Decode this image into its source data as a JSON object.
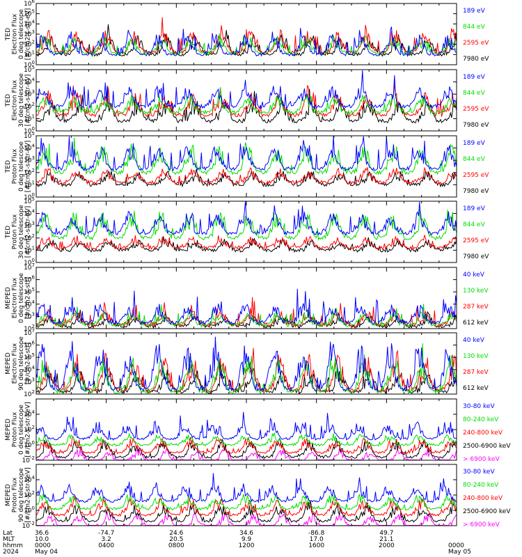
{
  "colors": {
    "black": "#000000",
    "red": "#ff0000",
    "green": "#00dd00",
    "blue": "#0000ff",
    "magenta": "#ff00ff"
  },
  "chart_data": [
    {
      "type": "line",
      "ylabel": [
        "TED",
        "Electron Flux",
        "0 deg telescope",
        "[#/cm2-s-str-eV]"
      ],
      "yscale": "log",
      "ylim_exp": [
        0,
        6
      ],
      "tick_labels": [
        "10",
        "10",
        "10",
        "10",
        "10",
        "10",
        "10"
      ],
      "tick_exponents": [
        "0",
        "1",
        "2",
        "3",
        "4",
        "5",
        "6"
      ],
      "series": [
        {
          "name": "7980 eV",
          "color": "#000000",
          "base": 1.0,
          "amp": 1.3,
          "spike": 1.2,
          "seed": 11
        },
        {
          "name": "2595 eV",
          "color": "#ff0000",
          "base": 1.2,
          "amp": 1.5,
          "spike": 1.6,
          "seed": 12
        },
        {
          "name": "844 eV",
          "color": "#00dd00",
          "base": 1.1,
          "amp": 1.2,
          "spike": 1.0,
          "seed": 13
        },
        {
          "name": "189 eV",
          "color": "#0000ff",
          "base": 1.0,
          "amp": 1.4,
          "spike": 1.4,
          "seed": 14
        }
      ]
    },
    {
      "type": "line",
      "ylabel": [
        "TED",
        "Electron Flux",
        "30 deg telescope",
        "[#/cm2-s-str-eV]"
      ],
      "yscale": "log",
      "ylim_exp": [
        0,
        5
      ],
      "tick_labels": [
        "10",
        "10",
        "10",
        "10",
        "10",
        "10"
      ],
      "tick_exponents": [
        "0",
        "1",
        "2",
        "3",
        "4",
        "5"
      ],
      "series": [
        {
          "name": "7980 eV",
          "color": "#000000",
          "base": 0.8,
          "amp": 1.2,
          "spike": 1.2,
          "seed": 21
        },
        {
          "name": "2595 eV",
          "color": "#ff0000",
          "base": 1.3,
          "amp": 1.3,
          "spike": 1.4,
          "seed": 22
        },
        {
          "name": "844 eV",
          "color": "#00dd00",
          "base": 1.5,
          "amp": 1.0,
          "spike": 0.8,
          "seed": 23
        },
        {
          "name": "189 eV",
          "color": "#0000ff",
          "base": 2.0,
          "amp": 1.2,
          "spike": 1.6,
          "seed": 24
        }
      ]
    },
    {
      "type": "line",
      "ylabel": [
        "TED",
        "Proton Flux",
        "0 deg telescope",
        "[#/cm2-s-str-eV]"
      ],
      "yscale": "log",
      "ylim_exp": [
        0,
        5
      ],
      "tick_labels": [
        "10",
        "10",
        "10",
        "10",
        "10",
        "10"
      ],
      "tick_exponents": [
        "0",
        "1",
        "2",
        "3",
        "4",
        "5"
      ],
      "series": [
        {
          "name": "7980 eV",
          "color": "#000000",
          "base": 1.0,
          "amp": 0.8,
          "spike": 0.6,
          "seed": 31
        },
        {
          "name": "2595 eV",
          "color": "#ff0000",
          "base": 1.2,
          "amp": 0.8,
          "spike": 0.6,
          "seed": 32
        },
        {
          "name": "844 eV",
          "color": "#00dd00",
          "base": 2.0,
          "amp": 1.6,
          "spike": 0.8,
          "seed": 33
        },
        {
          "name": "189 eV",
          "color": "#0000ff",
          "base": 2.3,
          "amp": 1.4,
          "spike": 1.6,
          "seed": 34
        }
      ]
    },
    {
      "type": "line",
      "ylabel": [
        "TED",
        "Proton Flux",
        "30 deg telescope",
        "[#/cm2-s-str-eV]"
      ],
      "yscale": "log",
      "ylim_exp": [
        0,
        5
      ],
      "tick_labels": [
        "10",
        "10",
        "10",
        "10",
        "10",
        "10"
      ],
      "tick_exponents": [
        "0",
        "1",
        "2",
        "3",
        "4",
        "5"
      ],
      "series": [
        {
          "name": "7980 eV",
          "color": "#000000",
          "base": 1.0,
          "amp": 0.6,
          "spike": 0.5,
          "seed": 41
        },
        {
          "name": "2595 eV",
          "color": "#ff0000",
          "base": 1.2,
          "amp": 0.6,
          "spike": 0.5,
          "seed": 42
        },
        {
          "name": "844 eV",
          "color": "#00dd00",
          "base": 2.0,
          "amp": 1.5,
          "spike": 0.8,
          "seed": 43
        },
        {
          "name": "189 eV",
          "color": "#0000ff",
          "base": 2.4,
          "amp": 1.2,
          "spike": 1.4,
          "seed": 44
        }
      ]
    },
    {
      "type": "line",
      "ylabel": [
        "MEPED",
        "Electron Flux",
        "0 deg telescope",
        "[#/cm2-s-str]"
      ],
      "yscale": "log",
      "ylim_exp": [
        2,
        7
      ],
      "tick_labels": [
        "10",
        "10",
        "10",
        "10",
        "10",
        "10"
      ],
      "tick_exponents": [
        "2",
        "3",
        "4",
        "5",
        "6",
        "7"
      ],
      "series": [
        {
          "name": "612 keV",
          "color": "#000000",
          "base": 2.2,
          "amp": 0.6,
          "spike": 0.8,
          "seed": 51
        },
        {
          "name": "287 keV",
          "color": "#ff0000",
          "base": 2.3,
          "amp": 0.8,
          "spike": 1.4,
          "seed": 52
        },
        {
          "name": "130 keV",
          "color": "#00dd00",
          "base": 2.3,
          "amp": 0.7,
          "spike": 1.0,
          "seed": 53
        },
        {
          "name": "40 keV",
          "color": "#0000ff",
          "base": 2.5,
          "amp": 1.1,
          "spike": 2.2,
          "seed": 54
        }
      ]
    },
    {
      "type": "line",
      "ylabel": [
        "MEPED",
        "Electron Flux",
        "90 deg telescope",
        "[#/cm2-s-str]"
      ],
      "yscale": "log",
      "ylim_exp": [
        2,
        7
      ],
      "tick_labels": [
        "10",
        "10",
        "10",
        "10",
        "10",
        "10"
      ],
      "tick_exponents": [
        "2",
        "3",
        "4",
        "5",
        "6",
        "7"
      ],
      "series": [
        {
          "name": "612 keV",
          "color": "#000000",
          "base": 2.2,
          "amp": 1.2,
          "spike": 1.2,
          "seed": 61
        },
        {
          "name": "287 keV",
          "color": "#ff0000",
          "base": 2.3,
          "amp": 2.0,
          "spike": 1.4,
          "seed": 62
        },
        {
          "name": "130 keV",
          "color": "#00dd00",
          "base": 2.2,
          "amp": 2.0,
          "spike": 1.2,
          "seed": 63
        },
        {
          "name": "40 keV",
          "color": "#0000ff",
          "base": 2.4,
          "amp": 2.6,
          "spike": 1.6,
          "seed": 64
        }
      ]
    },
    {
      "type": "line",
      "ylabel": [
        "MEPED",
        "Proton Flux",
        "0 deg telescope",
        "[#/cm2-s-str-keV]"
      ],
      "yscale": "log",
      "ylim_exp": [
        -2,
        6
      ],
      "tick_labels": [
        "10",
        "10",
        "10",
        "10"
      ],
      "tick_exponents": [
        "-2",
        "0",
        "2",
        "4"
      ],
      "tick_values": [
        -2,
        0,
        2,
        4
      ],
      "series": [
        {
          "name": "> 6900 keV",
          "color": "#ff00ff",
          "base": -2.2,
          "amp": 1.2,
          "spike": 0.4,
          "seed": 71
        },
        {
          "name": "2500-6900 keV",
          "color": "#000000",
          "base": -1.6,
          "amp": 1.6,
          "spike": 0.6,
          "seed": 72
        },
        {
          "name": "240-800 keV",
          "color": "#ff0000",
          "base": -1.0,
          "amp": 1.4,
          "spike": 0.6,
          "seed": 73
        },
        {
          "name": "80-240 keV",
          "color": "#00dd00",
          "base": 0.0,
          "amp": 1.0,
          "spike": 0.5,
          "seed": 74
        },
        {
          "name": "30-80 keV",
          "color": "#0000ff",
          "base": 0.8,
          "amp": 1.5,
          "spike": 2.0,
          "seed": 75
        }
      ]
    },
    {
      "type": "line",
      "ylabel": [
        "MEPED",
        "Proton Flux",
        "90 deg telescope",
        "[#/cm2-s-str-keV]"
      ],
      "yscale": "log",
      "ylim_exp": [
        -2,
        6
      ],
      "tick_labels": [
        "10",
        "10",
        "10",
        "10"
      ],
      "tick_exponents": [
        "-2",
        "0",
        "2",
        "4"
      ],
      "tick_values": [
        -2,
        0,
        2,
        4
      ],
      "series": [
        {
          "name": "> 6900 keV",
          "color": "#ff00ff",
          "base": -2.2,
          "amp": 1.3,
          "spike": 0.4,
          "seed": 81
        },
        {
          "name": "2500-6900 keV",
          "color": "#000000",
          "base": -1.4,
          "amp": 1.6,
          "spike": 0.6,
          "seed": 82
        },
        {
          "name": "240-800 keV",
          "color": "#ff0000",
          "base": -0.6,
          "amp": 1.6,
          "spike": 0.8,
          "seed": 83
        },
        {
          "name": "80-240 keV",
          "color": "#00dd00",
          "base": 0.2,
          "amp": 1.3,
          "spike": 0.6,
          "seed": 84
        },
        {
          "name": "30-80 keV",
          "color": "#0000ff",
          "base": 1.2,
          "amp": 1.5,
          "spike": 1.8,
          "seed": 85
        }
      ]
    }
  ],
  "x_axis": {
    "row_labels": [
      "Lat",
      "MLT",
      "hhmm",
      "2024"
    ],
    "columns": [
      {
        "lat": "36.6",
        "mlt": "10.0",
        "hhmm": "0000",
        "date": "May 04"
      },
      {
        "lat": "-74.7",
        "mlt": "3.2",
        "hhmm": "0400",
        "date": ""
      },
      {
        "lat": "24.6",
        "mlt": "20.5",
        "hhmm": "0800",
        "date": ""
      },
      {
        "lat": "34.6",
        "mlt": "9.9",
        "hhmm": "1200",
        "date": ""
      },
      {
        "lat": "-86.8",
        "mlt": "17.0",
        "hhmm": "1600",
        "date": ""
      },
      {
        "lat": "49.7",
        "mlt": "21.1",
        "hhmm": "2000",
        "date": ""
      },
      {
        "lat": "",
        "mlt": "",
        "hhmm": "0000",
        "date": "May 05"
      }
    ]
  }
}
